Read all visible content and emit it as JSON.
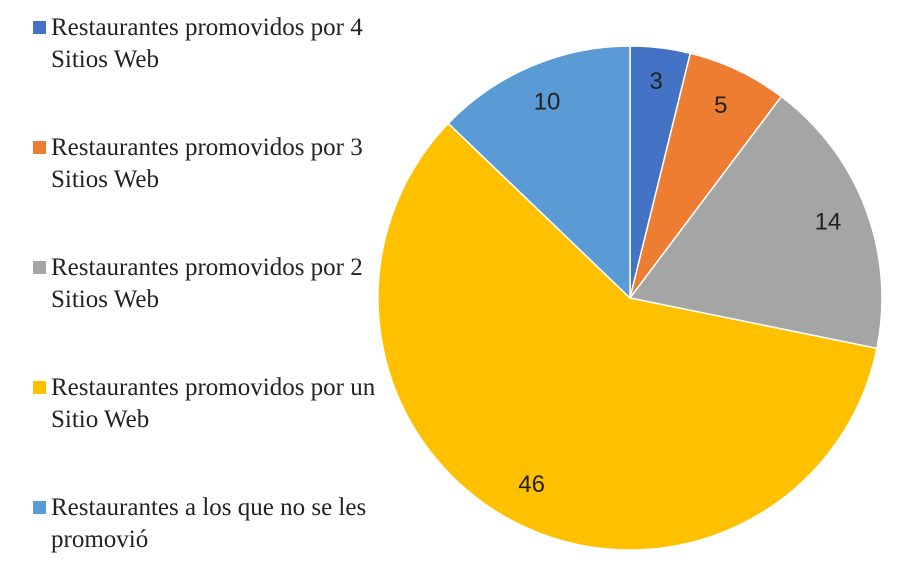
{
  "chart_data": {
    "type": "pie",
    "categories": [
      "Restaurantes promovidos por 4 Sitios Web",
      "Restaurantes promovidos por 3 Sitios Web",
      "Restaurantes promovidos por 2 Sitios Web",
      "Restaurantes promovidos por un Sitio Web",
      "Restaurantes a los que no se les promovió"
    ],
    "values": [
      3,
      5,
      14,
      46,
      10
    ],
    "colors": [
      "#4472c4",
      "#ed7d31",
      "#a5a5a5",
      "#ffc000",
      "#5b9bd5"
    ],
    "legend": "left"
  }
}
